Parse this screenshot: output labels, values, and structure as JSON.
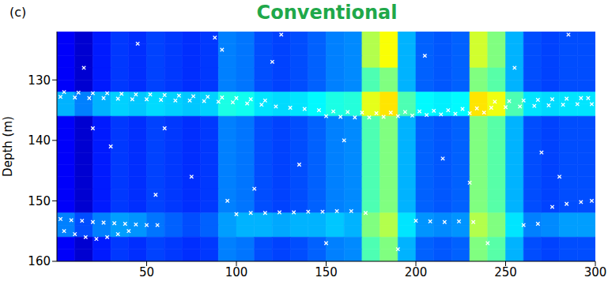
{
  "chart_data": {
    "type": "heatmap",
    "title": "Conventional",
    "panel": "(c)",
    "y_label": "Depth (m)",
    "xlim": [
      0,
      300
    ],
    "xticks": [
      50,
      100,
      150,
      200,
      250,
      300
    ],
    "ylim": [
      122,
      160
    ],
    "yticks": [
      130,
      140,
      150,
      160
    ],
    "heatmap": {
      "x_edges": [
        0,
        10,
        20,
        30,
        40,
        50,
        60,
        70,
        80,
        90,
        100,
        110,
        120,
        130,
        140,
        150,
        160,
        170,
        180,
        190,
        200,
        210,
        220,
        230,
        240,
        250,
        260,
        270,
        280,
        290,
        300
      ],
      "y_edges": [
        122,
        124,
        126,
        128,
        130,
        132,
        134,
        136,
        138,
        140,
        142,
        144,
        146,
        148,
        150,
        152,
        154,
        156,
        158,
        160
      ],
      "zlim": [
        0,
        1
      ],
      "values": [
        [
          0.12,
          0.08,
          0.15,
          0.18,
          0.17,
          0.19,
          0.18,
          0.17,
          0.18,
          0.25,
          0.24,
          0.2,
          0.19,
          0.2,
          0.22,
          0.25,
          0.26,
          0.55,
          0.62,
          0.3,
          0.22,
          0.21,
          0.22,
          0.58,
          0.5,
          0.3,
          0.2,
          0.19,
          0.2,
          0.2
        ],
        [
          0.12,
          0.08,
          0.15,
          0.18,
          0.17,
          0.19,
          0.18,
          0.17,
          0.18,
          0.25,
          0.24,
          0.2,
          0.19,
          0.2,
          0.22,
          0.25,
          0.26,
          0.55,
          0.62,
          0.3,
          0.22,
          0.21,
          0.22,
          0.58,
          0.5,
          0.3,
          0.2,
          0.19,
          0.2,
          0.2
        ],
        [
          0.12,
          0.08,
          0.15,
          0.18,
          0.17,
          0.19,
          0.18,
          0.17,
          0.18,
          0.25,
          0.24,
          0.2,
          0.19,
          0.2,
          0.22,
          0.25,
          0.26,
          0.55,
          0.62,
          0.3,
          0.22,
          0.21,
          0.22,
          0.58,
          0.5,
          0.3,
          0.2,
          0.19,
          0.2,
          0.2
        ],
        [
          0.12,
          0.08,
          0.15,
          0.18,
          0.17,
          0.19,
          0.18,
          0.17,
          0.18,
          0.25,
          0.24,
          0.2,
          0.19,
          0.2,
          0.22,
          0.25,
          0.26,
          0.45,
          0.5,
          0.3,
          0.22,
          0.21,
          0.22,
          0.5,
          0.46,
          0.3,
          0.2,
          0.19,
          0.2,
          0.2
        ],
        [
          0.12,
          0.08,
          0.15,
          0.18,
          0.17,
          0.19,
          0.18,
          0.17,
          0.18,
          0.25,
          0.24,
          0.2,
          0.19,
          0.2,
          0.22,
          0.25,
          0.26,
          0.45,
          0.5,
          0.3,
          0.22,
          0.21,
          0.22,
          0.5,
          0.46,
          0.3,
          0.2,
          0.19,
          0.2,
          0.2
        ],
        [
          0.3,
          0.25,
          0.3,
          0.33,
          0.32,
          0.34,
          0.33,
          0.32,
          0.33,
          0.4,
          0.39,
          0.35,
          0.34,
          0.35,
          0.37,
          0.4,
          0.41,
          0.6,
          0.65,
          0.45,
          0.37,
          0.36,
          0.37,
          0.65,
          0.61,
          0.45,
          0.35,
          0.34,
          0.35,
          0.35
        ],
        [
          0.3,
          0.25,
          0.3,
          0.33,
          0.32,
          0.34,
          0.33,
          0.32,
          0.33,
          0.4,
          0.39,
          0.35,
          0.34,
          0.35,
          0.37,
          0.4,
          0.41,
          0.6,
          0.65,
          0.45,
          0.37,
          0.36,
          0.37,
          0.65,
          0.61,
          0.45,
          0.35,
          0.34,
          0.35,
          0.35
        ],
        [
          0.12,
          0.08,
          0.15,
          0.18,
          0.17,
          0.19,
          0.18,
          0.17,
          0.18,
          0.25,
          0.24,
          0.2,
          0.19,
          0.2,
          0.22,
          0.25,
          0.26,
          0.45,
          0.5,
          0.3,
          0.22,
          0.21,
          0.22,
          0.5,
          0.46,
          0.3,
          0.2,
          0.19,
          0.2,
          0.2
        ],
        [
          0.12,
          0.08,
          0.15,
          0.18,
          0.17,
          0.19,
          0.18,
          0.17,
          0.18,
          0.25,
          0.24,
          0.2,
          0.19,
          0.2,
          0.22,
          0.25,
          0.26,
          0.45,
          0.5,
          0.3,
          0.22,
          0.21,
          0.22,
          0.5,
          0.46,
          0.3,
          0.2,
          0.19,
          0.2,
          0.2
        ],
        [
          0.12,
          0.08,
          0.15,
          0.18,
          0.17,
          0.19,
          0.18,
          0.17,
          0.18,
          0.25,
          0.24,
          0.2,
          0.19,
          0.2,
          0.22,
          0.25,
          0.26,
          0.45,
          0.5,
          0.3,
          0.22,
          0.21,
          0.22,
          0.5,
          0.46,
          0.3,
          0.2,
          0.19,
          0.2,
          0.2
        ],
        [
          0.12,
          0.08,
          0.15,
          0.18,
          0.17,
          0.19,
          0.18,
          0.17,
          0.18,
          0.25,
          0.24,
          0.2,
          0.19,
          0.2,
          0.22,
          0.25,
          0.26,
          0.45,
          0.5,
          0.3,
          0.22,
          0.21,
          0.22,
          0.5,
          0.46,
          0.3,
          0.2,
          0.19,
          0.2,
          0.2
        ],
        [
          0.12,
          0.08,
          0.15,
          0.18,
          0.17,
          0.19,
          0.18,
          0.17,
          0.18,
          0.25,
          0.24,
          0.2,
          0.19,
          0.2,
          0.22,
          0.25,
          0.26,
          0.45,
          0.5,
          0.3,
          0.22,
          0.21,
          0.22,
          0.5,
          0.46,
          0.3,
          0.2,
          0.19,
          0.2,
          0.2
        ],
        [
          0.12,
          0.08,
          0.15,
          0.18,
          0.17,
          0.19,
          0.18,
          0.17,
          0.18,
          0.25,
          0.24,
          0.2,
          0.19,
          0.2,
          0.22,
          0.25,
          0.26,
          0.45,
          0.5,
          0.3,
          0.22,
          0.21,
          0.22,
          0.5,
          0.46,
          0.3,
          0.2,
          0.19,
          0.2,
          0.2
        ],
        [
          0.12,
          0.08,
          0.15,
          0.18,
          0.17,
          0.19,
          0.18,
          0.17,
          0.18,
          0.25,
          0.24,
          0.2,
          0.19,
          0.2,
          0.22,
          0.25,
          0.26,
          0.45,
          0.5,
          0.3,
          0.22,
          0.21,
          0.22,
          0.5,
          0.46,
          0.3,
          0.2,
          0.19,
          0.2,
          0.2
        ],
        [
          0.12,
          0.08,
          0.15,
          0.18,
          0.17,
          0.19,
          0.18,
          0.17,
          0.18,
          0.25,
          0.24,
          0.2,
          0.19,
          0.2,
          0.22,
          0.25,
          0.26,
          0.45,
          0.5,
          0.3,
          0.22,
          0.21,
          0.22,
          0.5,
          0.46,
          0.3,
          0.2,
          0.19,
          0.2,
          0.2
        ],
        [
          0.25,
          0.2,
          0.25,
          0.28,
          0.27,
          0.24,
          0.22,
          0.2,
          0.22,
          0.28,
          0.3,
          0.3,
          0.29,
          0.3,
          0.3,
          0.32,
          0.3,
          0.5,
          0.55,
          0.35,
          0.27,
          0.26,
          0.27,
          0.55,
          0.5,
          0.35,
          0.25,
          0.26,
          0.28,
          0.28
        ],
        [
          0.25,
          0.2,
          0.25,
          0.28,
          0.27,
          0.24,
          0.22,
          0.2,
          0.22,
          0.28,
          0.3,
          0.3,
          0.29,
          0.3,
          0.3,
          0.32,
          0.3,
          0.5,
          0.55,
          0.35,
          0.27,
          0.26,
          0.27,
          0.55,
          0.5,
          0.35,
          0.25,
          0.26,
          0.28,
          0.28
        ],
        [
          0.12,
          0.08,
          0.15,
          0.18,
          0.17,
          0.19,
          0.18,
          0.17,
          0.18,
          0.25,
          0.24,
          0.2,
          0.19,
          0.2,
          0.22,
          0.25,
          0.26,
          0.45,
          0.5,
          0.3,
          0.22,
          0.21,
          0.22,
          0.5,
          0.46,
          0.3,
          0.2,
          0.19,
          0.2,
          0.2
        ],
        [
          0.12,
          0.08,
          0.15,
          0.18,
          0.17,
          0.19,
          0.18,
          0.17,
          0.18,
          0.25,
          0.24,
          0.2,
          0.19,
          0.2,
          0.22,
          0.25,
          0.26,
          0.45,
          0.5,
          0.3,
          0.22,
          0.21,
          0.22,
          0.5,
          0.46,
          0.3,
          0.2,
          0.19,
          0.2,
          0.2
        ]
      ]
    },
    "series": [
      {
        "type": "scatter",
        "marker": "x",
        "color": "#ffffff",
        "points": [
          [
            2,
            132.8
          ],
          [
            10,
            132.9
          ],
          [
            18,
            133
          ],
          [
            26,
            133
          ],
          [
            34,
            133.1
          ],
          [
            42,
            133.2
          ],
          [
            50,
            133.2
          ],
          [
            58,
            133.3
          ],
          [
            66,
            133.4
          ],
          [
            74,
            133.4
          ],
          [
            82,
            133.5
          ],
          [
            90,
            133.6
          ],
          [
            98,
            133.7
          ],
          [
            106,
            133.9
          ],
          [
            114,
            134.1
          ],
          [
            122,
            134.4
          ],
          [
            130,
            134.6
          ],
          [
            138,
            134.8
          ],
          [
            146,
            135
          ],
          [
            154,
            135.2
          ],
          [
            162,
            135.3
          ],
          [
            170,
            135.4
          ],
          [
            178,
            135.5
          ],
          [
            186,
            135.4
          ],
          [
            194,
            135.3
          ],
          [
            202,
            135.2
          ],
          [
            210,
            135.1
          ],
          [
            218,
            135
          ],
          [
            226,
            134.8
          ],
          [
            234,
            134.7
          ],
          [
            242,
            134.6
          ],
          [
            250,
            134.5
          ],
          [
            258,
            134.4
          ],
          [
            266,
            134.3
          ],
          [
            274,
            134.2
          ],
          [
            282,
            134.1
          ],
          [
            290,
            134
          ],
          [
            298,
            134
          ],
          [
            4,
            132
          ],
          [
            12,
            132.1
          ],
          [
            20,
            132.2
          ],
          [
            28,
            132.2
          ],
          [
            36,
            132.3
          ],
          [
            44,
            132.4
          ],
          [
            52,
            132.4
          ],
          [
            60,
            132.5
          ],
          [
            68,
            132.6
          ],
          [
            76,
            132.7
          ],
          [
            84,
            132.8
          ],
          [
            92,
            132.9
          ],
          [
            100,
            133
          ],
          [
            108,
            133.2
          ],
          [
            116,
            133.4
          ],
          [
            244,
            133.6
          ],
          [
            252,
            133.5
          ],
          [
            260,
            133.4
          ],
          [
            268,
            133.3
          ],
          [
            276,
            133.2
          ],
          [
            284,
            133.1
          ],
          [
            292,
            133
          ],
          [
            296,
            133
          ],
          [
            150,
            136
          ],
          [
            158,
            136.1
          ],
          [
            166,
            136.2
          ],
          [
            174,
            136.2
          ],
          [
            182,
            136.1
          ],
          [
            190,
            136
          ],
          [
            198,
            135.9
          ],
          [
            206,
            135.8
          ],
          [
            214,
            135.7
          ],
          [
            222,
            135.6
          ],
          [
            230,
            135.5
          ],
          [
            238,
            135.4
          ],
          [
            2,
            153
          ],
          [
            8,
            153.2
          ],
          [
            14,
            153.3
          ],
          [
            20,
            153.5
          ],
          [
            26,
            153.6
          ],
          [
            32,
            153.7
          ],
          [
            38,
            153.8
          ],
          [
            44,
            153.9
          ],
          [
            50,
            154
          ],
          [
            56,
            154
          ],
          [
            4,
            155
          ],
          [
            10,
            155.5
          ],
          [
            16,
            156
          ],
          [
            22,
            156.3
          ],
          [
            28,
            156
          ],
          [
            34,
            155.5
          ],
          [
            40,
            155
          ],
          [
            100,
            152.2
          ],
          [
            108,
            152
          ],
          [
            116,
            152
          ],
          [
            124,
            151.9
          ],
          [
            132,
            151.9
          ],
          [
            140,
            151.8
          ],
          [
            148,
            151.8
          ],
          [
            156,
            151.7
          ],
          [
            164,
            151.7
          ],
          [
            172,
            152
          ],
          [
            200,
            153.3
          ],
          [
            208,
            153.4
          ],
          [
            216,
            153.5
          ],
          [
            224,
            153.4
          ],
          [
            232,
            153.5
          ],
          [
            260,
            154
          ],
          [
            268,
            153.8
          ],
          [
            276,
            151
          ],
          [
            284,
            150.5
          ],
          [
            292,
            150.2
          ],
          [
            298,
            150
          ],
          [
            15,
            128
          ],
          [
            45,
            124
          ],
          [
            88,
            123
          ],
          [
            92,
            125
          ],
          [
            120,
            127
          ],
          [
            60,
            138
          ],
          [
            30,
            141
          ],
          [
            75,
            146
          ],
          [
            110,
            148
          ],
          [
            135,
            144
          ],
          [
            160,
            140
          ],
          [
            205,
            126
          ],
          [
            215,
            143
          ],
          [
            255,
            128
          ],
          [
            270,
            142
          ],
          [
            280,
            146
          ],
          [
            230,
            147
          ],
          [
            55,
            149
          ],
          [
            95,
            150
          ],
          [
            150,
            157
          ],
          [
            190,
            158
          ],
          [
            240,
            157
          ],
          [
            20,
            138
          ],
          [
            285,
            122.5
          ],
          [
            125,
            122.5
          ]
        ]
      }
    ]
  }
}
